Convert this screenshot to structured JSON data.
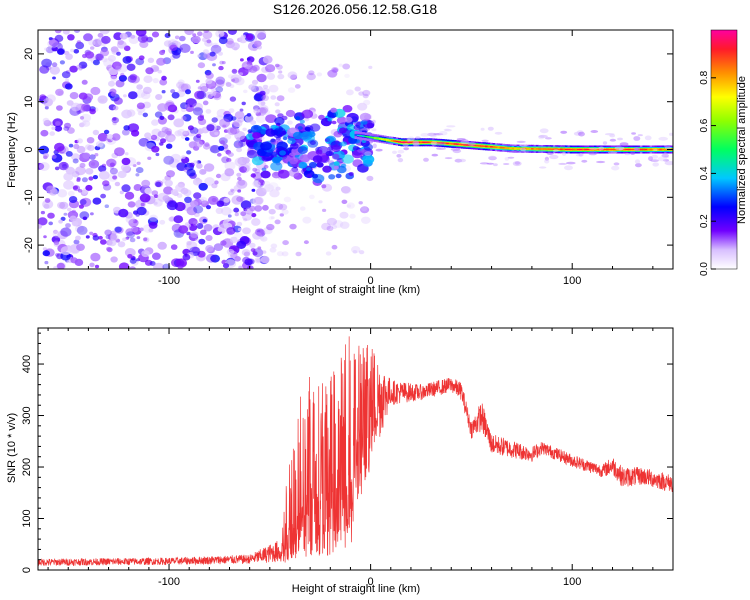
{
  "title": "S126.2026.056.12.58.G18",
  "colors": {
    "snr_line": "#ee3333",
    "spectrogram_background": "#ffffff",
    "axis": "#000000"
  },
  "colorbar": {
    "label": "Normalized spectral amplitude",
    "ticks": [
      "0.0",
      "0.2",
      "0.4",
      "0.6",
      "0.8"
    ],
    "tick_values": [
      0.0,
      0.2,
      0.4,
      0.6,
      0.8
    ],
    "range": [
      0,
      1
    ]
  },
  "chart_data": [
    {
      "type": "heatmap",
      "name": "spectrogram",
      "xlabel": "Height of straight line (km)",
      "ylabel": "Frequency (Hz)",
      "xlim": [
        -165,
        150
      ],
      "ylim": [
        -25,
        25
      ],
      "xticks": [
        -100,
        0,
        100
      ],
      "xtick_labels": [
        "-100",
        "0",
        "100"
      ],
      "yticks": [
        -20,
        -10,
        0,
        10,
        20
      ],
      "ytick_labels": [
        "-20",
        "-10",
        "0",
        "10",
        "20"
      ],
      "colorscale": "rainbow (0 = white/violet, 1 = magenta-red)",
      "ridge": [
        {
          "x": 0,
          "freq": 2.5,
          "amplitude": 0.55
        },
        {
          "x": 15,
          "freq": 1.5,
          "amplitude": 0.95
        },
        {
          "x": 30,
          "freq": 1.5,
          "amplitude": 0.9
        },
        {
          "x": 55,
          "freq": 0.7,
          "amplitude": 0.9
        },
        {
          "x": 70,
          "freq": 0.2,
          "amplitude": 0.8
        },
        {
          "x": 100,
          "freq": 0.0,
          "amplitude": 0.9
        },
        {
          "x": 150,
          "freq": 0.0,
          "amplitude": 0.85
        }
      ],
      "noise_region": {
        "x_range": [
          -165,
          -55
        ],
        "freq_range": [
          -25,
          25
        ],
        "amplitude": [
          0.0,
          0.2
        ]
      },
      "transition_region": {
        "x_range": [
          -60,
          0
        ],
        "freq_range": [
          -8,
          12
        ],
        "amplitude": [
          0.1,
          0.4
        ]
      }
    },
    {
      "type": "line",
      "name": "snr",
      "xlabel": "Height of straight line (km)",
      "ylabel": "SNR (10 * v/v)",
      "xlim": [
        -165,
        150
      ],
      "ylim": [
        0,
        470
      ],
      "xticks": [
        -100,
        0,
        100
      ],
      "xtick_labels": [
        "-100",
        "0",
        "100"
      ],
      "yticks": [
        0,
        100,
        200,
        300,
        400
      ],
      "ytick_labels": [
        "0",
        "100",
        "200",
        "300",
        "400"
      ],
      "envelope": [
        {
          "x": -165,
          "min": 8,
          "max": 22
        },
        {
          "x": -100,
          "min": 10,
          "max": 24
        },
        {
          "x": -60,
          "min": 12,
          "max": 30
        },
        {
          "x": -45,
          "min": 15,
          "max": 60
        },
        {
          "x": -40,
          "min": 10,
          "max": 240
        },
        {
          "x": -30,
          "min": 20,
          "max": 430
        },
        {
          "x": -20,
          "min": 30,
          "max": 380
        },
        {
          "x": -10,
          "min": 40,
          "max": 460
        },
        {
          "x": 0,
          "min": 200,
          "max": 450
        },
        {
          "x": 10,
          "min": 320,
          "max": 370
        },
        {
          "x": 25,
          "min": 330,
          "max": 360
        },
        {
          "x": 40,
          "min": 345,
          "max": 375
        },
        {
          "x": 45,
          "min": 330,
          "max": 365
        },
        {
          "x": 50,
          "min": 255,
          "max": 290
        },
        {
          "x": 55,
          "min": 270,
          "max": 330
        },
        {
          "x": 60,
          "min": 225,
          "max": 265
        },
        {
          "x": 80,
          "min": 210,
          "max": 240
        },
        {
          "x": 85,
          "min": 225,
          "max": 250
        },
        {
          "x": 100,
          "min": 200,
          "max": 225
        },
        {
          "x": 115,
          "min": 180,
          "max": 205
        },
        {
          "x": 120,
          "min": 185,
          "max": 222
        },
        {
          "x": 125,
          "min": 160,
          "max": 200
        },
        {
          "x": 135,
          "min": 165,
          "max": 200
        },
        {
          "x": 150,
          "min": 150,
          "max": 185
        }
      ]
    }
  ]
}
